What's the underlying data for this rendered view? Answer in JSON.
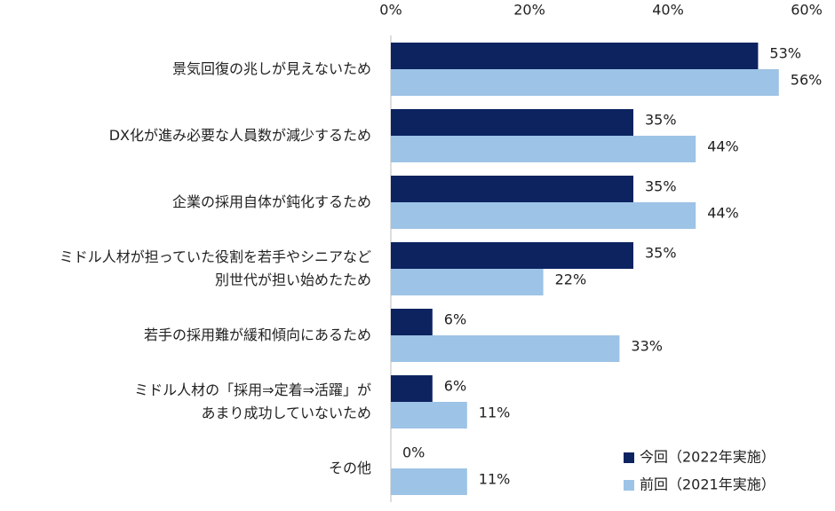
{
  "chart_data": {
    "type": "bar",
    "orientation": "horizontal",
    "categories": [
      "景気回復の兆しが見えないため",
      "DX化が進み必要な人員数が減少するため",
      "企業の採用自体が鈍化するため",
      "ミドル人材が担っていた役割を若手やシニアなど\n別世代が担い始めたため",
      "若手の採用難が緩和傾向にあるため",
      "ミドル人材の「採用⇒定着⇒活躍」が\nあまり成功していないため",
      "その他"
    ],
    "series": [
      {
        "name": "今回（2022年実施）",
        "color": "#0c2360",
        "values": [
          53,
          35,
          35,
          35,
          6,
          6,
          0
        ],
        "value_labels": [
          "53%",
          "35%",
          "35%",
          "35%",
          "6%",
          "6%",
          "0%"
        ]
      },
      {
        "name": "前回（2021年実施）",
        "color": "#9dc3e6",
        "values": [
          56,
          44,
          44,
          22,
          33,
          11,
          11
        ],
        "value_labels": [
          "56%",
          "44%",
          "44%",
          "22%",
          "33%",
          "11%",
          "11%"
        ]
      }
    ],
    "xlim": [
      0,
      60
    ],
    "xticks": [
      {
        "value": 0,
        "label": "0%"
      },
      {
        "value": 20,
        "label": "20%"
      },
      {
        "value": 40,
        "label": "40%"
      },
      {
        "value": 60,
        "label": "60%"
      }
    ],
    "grid": false,
    "legend": "lower right"
  }
}
